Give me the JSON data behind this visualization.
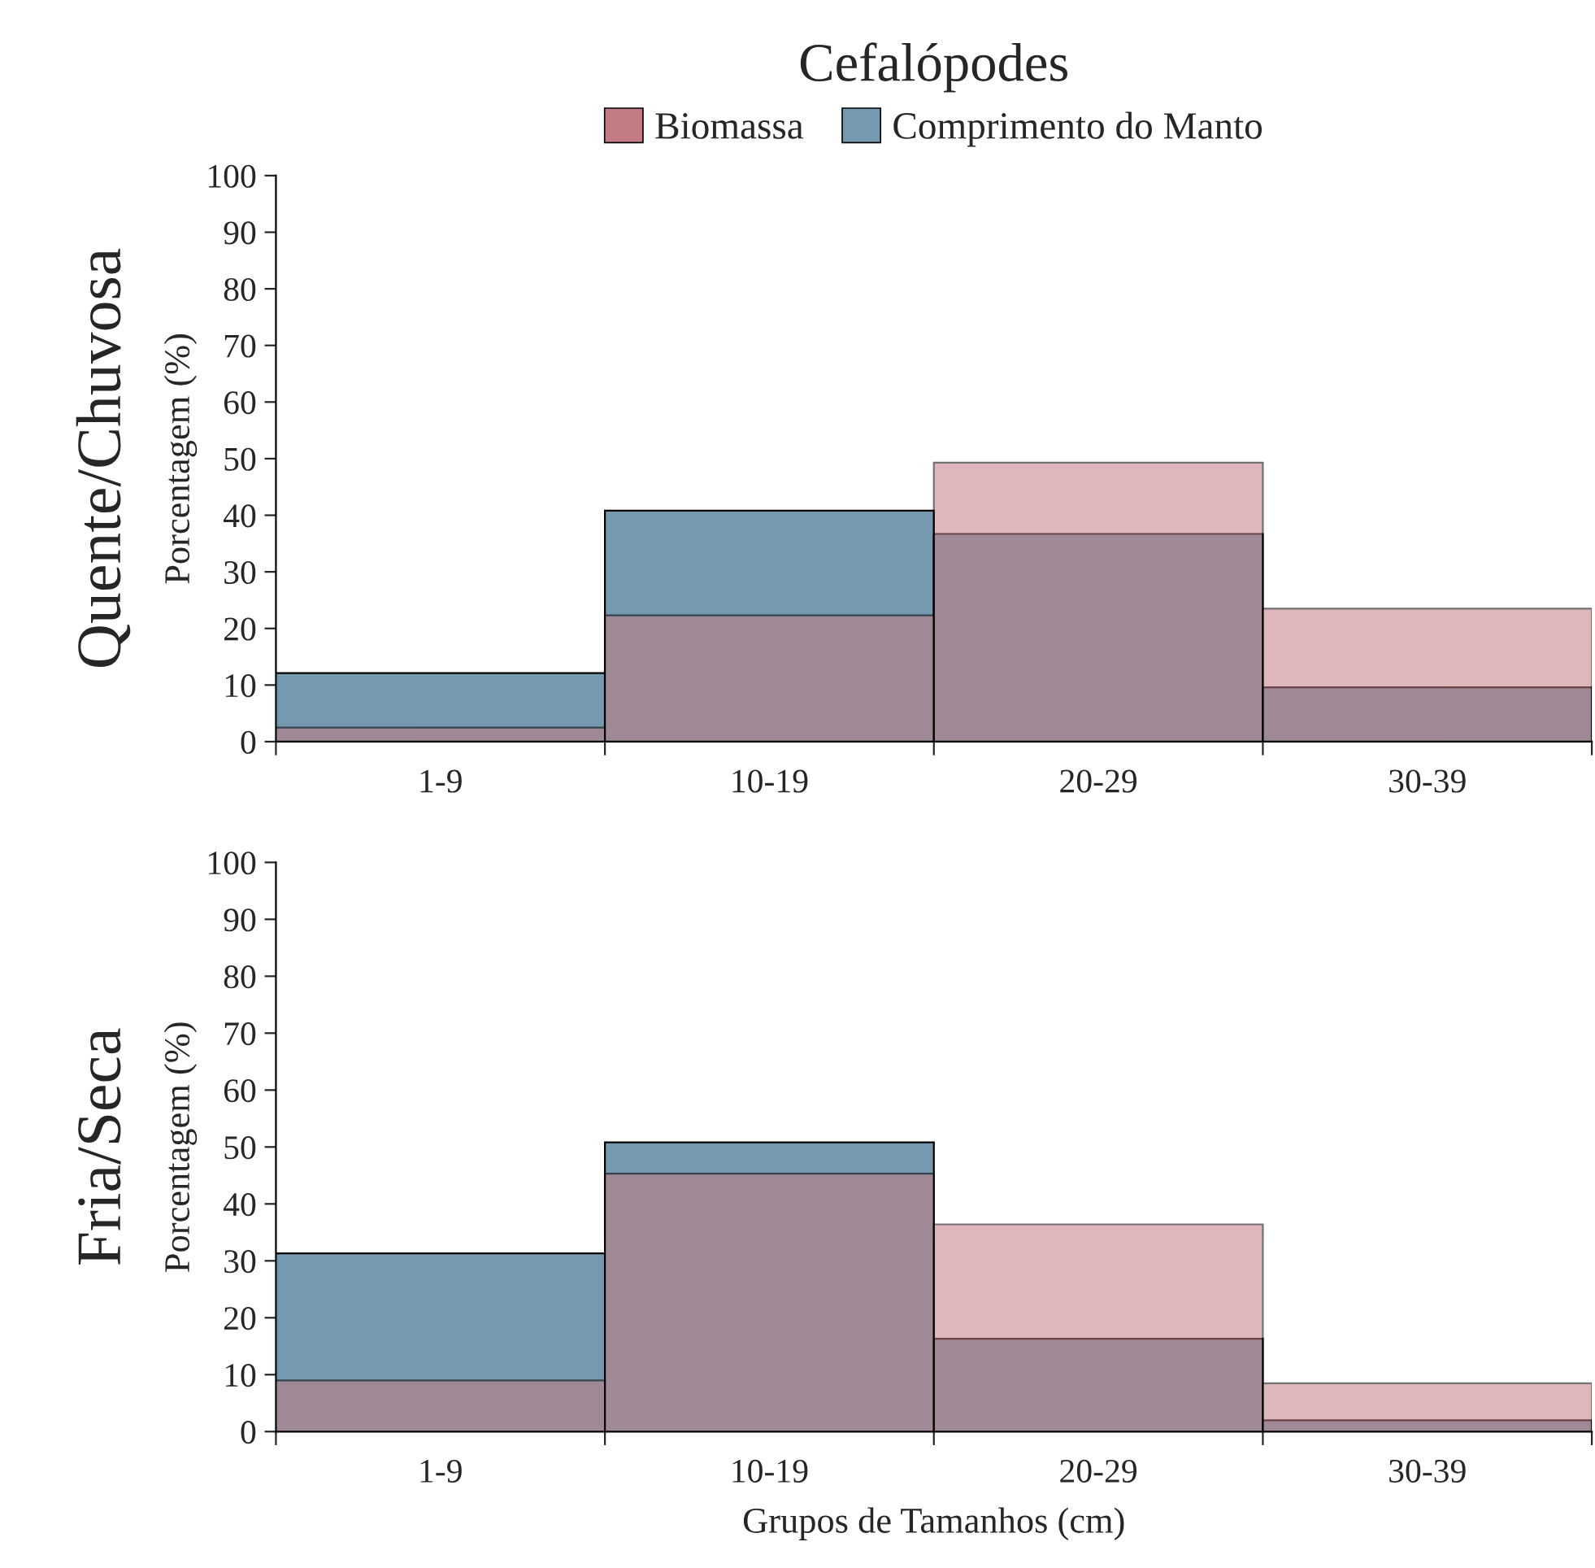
{
  "chart_data": [
    {
      "type": "bar",
      "title": "Cefalópodes",
      "ylabel": "Porcentagem (%)",
      "annotations": [
        "Quente/Chuvosa"
      ],
      "categories": [
        "1-9",
        "10-19",
        "20-29",
        "30-39"
      ],
      "legend": "top",
      "ylim": [
        0,
        100
      ],
      "yticks": [
        0,
        10,
        20,
        30,
        40,
        50,
        60,
        70,
        80,
        90,
        100
      ],
      "series": [
        {
          "name": "Biomassa",
          "color": "#c47c84",
          "values": [
            2.5,
            22.3,
            49.3,
            23.5
          ]
        },
        {
          "name": "Comprimento do Manto",
          "color": "#7599ae",
          "values": [
            12.1,
            40.8,
            36.7,
            9.6
          ]
        }
      ]
    },
    {
      "type": "bar",
      "ylabel": "Porcentagem (%)",
      "xlabel": "Grupos de Tamanhos (cm)",
      "annotations": [
        "Fria/Seca"
      ],
      "categories": [
        "1-9",
        "10-19",
        "20-29",
        "30-39"
      ],
      "ylim": [
        0,
        100
      ],
      "yticks": [
        0,
        10,
        20,
        30,
        40,
        50,
        60,
        70,
        80,
        90,
        100
      ],
      "series": [
        {
          "color": "#c47c84",
          "values": [
            9.0,
            45.3,
            36.4,
            8.5
          ]
        },
        {
          "color": "#7599ae",
          "values": [
            31.3,
            50.8,
            16.3,
            2.0
          ]
        }
      ]
    }
  ]
}
